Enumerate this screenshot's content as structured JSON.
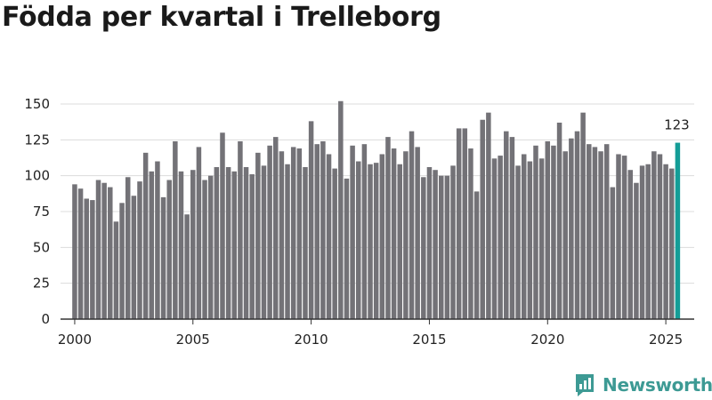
{
  "colors": {
    "bar": "#737277",
    "highlight": "#149d97",
    "grid": "#dcdcdc",
    "axis": "#333333",
    "brand": "#3d9a94"
  },
  "brand": {
    "name": "Newsworthy"
  },
  "chart_data": {
    "type": "bar",
    "title": "Födda per kvartal i Trelleborg",
    "xlabel": "",
    "ylabel": "",
    "ylim": [
      0,
      150
    ],
    "yticks": [
      0,
      25,
      50,
      75,
      100,
      125,
      150
    ],
    "xlim": [
      1999.4,
      2026.2
    ],
    "xticks": [
      2000,
      2005,
      2010,
      2015,
      2020,
      2025
    ],
    "start_year": 2000,
    "start_quarter": 1,
    "values": [
      94,
      91,
      84,
      83,
      97,
      95,
      92,
      68,
      81,
      99,
      86,
      96,
      116,
      103,
      110,
      85,
      97,
      124,
      103,
      73,
      104,
      120,
      97,
      100,
      106,
      130,
      106,
      103,
      124,
      106,
      101,
      116,
      107,
      121,
      127,
      117,
      108,
      120,
      119,
      106,
      138,
      122,
      124,
      115,
      105,
      152,
      98,
      121,
      110,
      122,
      108,
      109,
      115,
      127,
      119,
      108,
      117,
      131,
      120,
      99,
      106,
      104,
      100,
      100,
      107,
      133,
      133,
      119,
      89,
      139,
      144,
      112,
      114,
      131,
      127,
      107,
      115,
      110,
      121,
      112,
      124,
      121,
      137,
      117,
      126,
      131,
      144,
      122,
      120,
      117,
      122,
      92,
      115,
      114,
      104,
      95,
      107,
      108,
      117,
      115,
      108,
      105,
      123
    ],
    "highlight_label": "123"
  }
}
